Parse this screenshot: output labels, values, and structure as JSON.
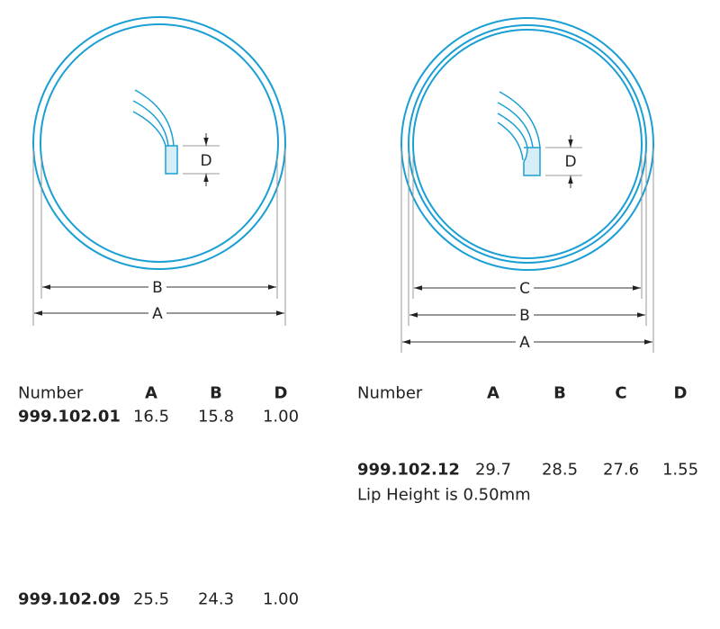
{
  "diagrams": [
    {
      "labels": {
        "d": "D",
        "b": "B",
        "a": "A"
      }
    },
    {
      "labels": {
        "d": "D",
        "c": "C",
        "b": "B",
        "a": "A"
      }
    }
  ],
  "tables": [
    {
      "header": [
        "Number",
        "A",
        "B",
        "D"
      ],
      "rows": [
        [
          "999.102.01",
          "16.5",
          "15.8",
          "1.00"
        ],
        [
          "999.102.09",
          "25.5",
          "24.3",
          "1.00"
        ]
      ]
    },
    {
      "header": [
        "Number",
        "A",
        "B",
        "C",
        "D"
      ],
      "rows": [
        [
          "999.102.12",
          "29.7",
          "28.5",
          "27.6",
          "1.55"
        ]
      ],
      "note": "Lip Height is 0.50mm"
    }
  ]
}
